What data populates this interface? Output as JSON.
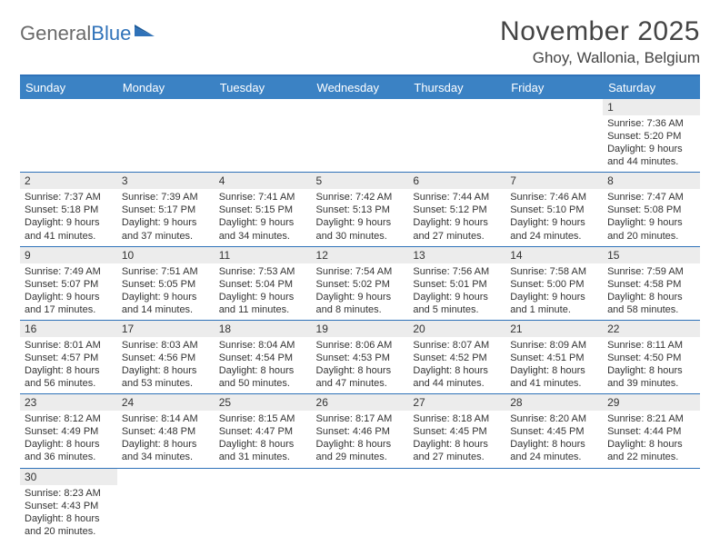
{
  "brand": {
    "part1": "General",
    "part2": "Blue"
  },
  "title": "November 2025",
  "location": "Ghoy, Wallonia, Belgium",
  "colors": {
    "header_bg": "#3b82c4",
    "rule": "#2f72b9",
    "daynum_bg": "#ececec",
    "text": "#333333"
  },
  "weekdays": [
    "Sunday",
    "Monday",
    "Tuesday",
    "Wednesday",
    "Thursday",
    "Friday",
    "Saturday"
  ],
  "grid": [
    [
      null,
      null,
      null,
      null,
      null,
      null,
      {
        "d": "1",
        "sr": "7:36 AM",
        "ss": "5:20 PM",
        "dl": "9 hours and 44 minutes."
      }
    ],
    [
      {
        "d": "2",
        "sr": "7:37 AM",
        "ss": "5:18 PM",
        "dl": "9 hours and 41 minutes."
      },
      {
        "d": "3",
        "sr": "7:39 AM",
        "ss": "5:17 PM",
        "dl": "9 hours and 37 minutes."
      },
      {
        "d": "4",
        "sr": "7:41 AM",
        "ss": "5:15 PM",
        "dl": "9 hours and 34 minutes."
      },
      {
        "d": "5",
        "sr": "7:42 AM",
        "ss": "5:13 PM",
        "dl": "9 hours and 30 minutes."
      },
      {
        "d": "6",
        "sr": "7:44 AM",
        "ss": "5:12 PM",
        "dl": "9 hours and 27 minutes."
      },
      {
        "d": "7",
        "sr": "7:46 AM",
        "ss": "5:10 PM",
        "dl": "9 hours and 24 minutes."
      },
      {
        "d": "8",
        "sr": "7:47 AM",
        "ss": "5:08 PM",
        "dl": "9 hours and 20 minutes."
      }
    ],
    [
      {
        "d": "9",
        "sr": "7:49 AM",
        "ss": "5:07 PM",
        "dl": "9 hours and 17 minutes."
      },
      {
        "d": "10",
        "sr": "7:51 AM",
        "ss": "5:05 PM",
        "dl": "9 hours and 14 minutes."
      },
      {
        "d": "11",
        "sr": "7:53 AM",
        "ss": "5:04 PM",
        "dl": "9 hours and 11 minutes."
      },
      {
        "d": "12",
        "sr": "7:54 AM",
        "ss": "5:02 PM",
        "dl": "9 hours and 8 minutes."
      },
      {
        "d": "13",
        "sr": "7:56 AM",
        "ss": "5:01 PM",
        "dl": "9 hours and 5 minutes."
      },
      {
        "d": "14",
        "sr": "7:58 AM",
        "ss": "5:00 PM",
        "dl": "9 hours and 1 minute."
      },
      {
        "d": "15",
        "sr": "7:59 AM",
        "ss": "4:58 PM",
        "dl": "8 hours and 58 minutes."
      }
    ],
    [
      {
        "d": "16",
        "sr": "8:01 AM",
        "ss": "4:57 PM",
        "dl": "8 hours and 56 minutes."
      },
      {
        "d": "17",
        "sr": "8:03 AM",
        "ss": "4:56 PM",
        "dl": "8 hours and 53 minutes."
      },
      {
        "d": "18",
        "sr": "8:04 AM",
        "ss": "4:54 PM",
        "dl": "8 hours and 50 minutes."
      },
      {
        "d": "19",
        "sr": "8:06 AM",
        "ss": "4:53 PM",
        "dl": "8 hours and 47 minutes."
      },
      {
        "d": "20",
        "sr": "8:07 AM",
        "ss": "4:52 PM",
        "dl": "8 hours and 44 minutes."
      },
      {
        "d": "21",
        "sr": "8:09 AM",
        "ss": "4:51 PM",
        "dl": "8 hours and 41 minutes."
      },
      {
        "d": "22",
        "sr": "8:11 AM",
        "ss": "4:50 PM",
        "dl": "8 hours and 39 minutes."
      }
    ],
    [
      {
        "d": "23",
        "sr": "8:12 AM",
        "ss": "4:49 PM",
        "dl": "8 hours and 36 minutes."
      },
      {
        "d": "24",
        "sr": "8:14 AM",
        "ss": "4:48 PM",
        "dl": "8 hours and 34 minutes."
      },
      {
        "d": "25",
        "sr": "8:15 AM",
        "ss": "4:47 PM",
        "dl": "8 hours and 31 minutes."
      },
      {
        "d": "26",
        "sr": "8:17 AM",
        "ss": "4:46 PM",
        "dl": "8 hours and 29 minutes."
      },
      {
        "d": "27",
        "sr": "8:18 AM",
        "ss": "4:45 PM",
        "dl": "8 hours and 27 minutes."
      },
      {
        "d": "28",
        "sr": "8:20 AM",
        "ss": "4:45 PM",
        "dl": "8 hours and 24 minutes."
      },
      {
        "d": "29",
        "sr": "8:21 AM",
        "ss": "4:44 PM",
        "dl": "8 hours and 22 minutes."
      }
    ],
    [
      {
        "d": "30",
        "sr": "8:23 AM",
        "ss": "4:43 PM",
        "dl": "8 hours and 20 minutes."
      },
      null,
      null,
      null,
      null,
      null,
      null
    ]
  ],
  "labels": {
    "sunrise": "Sunrise: ",
    "sunset": "Sunset: ",
    "daylight": "Daylight: "
  }
}
